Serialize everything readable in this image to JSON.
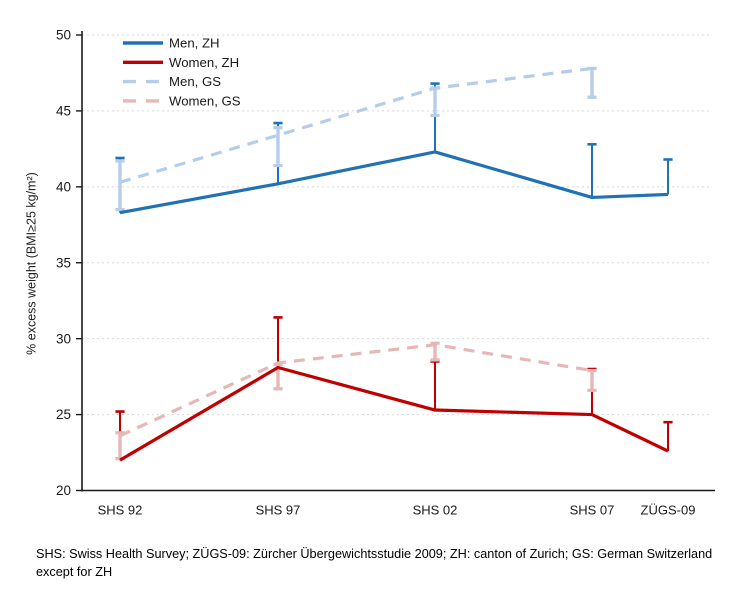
{
  "figure": {
    "caption": "SHS: Swiss Health Survey; ZÜGS-09: Zürcher Übergewichtsstudie 2009; ZH: canton of Zurich; GS: German Switzerland except for ZH"
  },
  "chart_data": {
    "type": "line",
    "title": "",
    "xlabel": "",
    "ylabel": "% excess weight (BMI≥25 kg/m²)",
    "categories": [
      "SHS 92",
      "SHS 97",
      "SHS 02",
      "SHS 07",
      "ZÜGS-09"
    ],
    "ylim": [
      20,
      50
    ],
    "ytick_step": 5,
    "yticks": [
      20,
      25,
      30,
      35,
      40,
      45,
      50
    ],
    "grid": "horizontal-dashed",
    "grid_color": "#D8D8D8",
    "axis_color": "#1a1a1a",
    "legend_position": "top-left-inside",
    "series": [
      {
        "name": "Men, ZH",
        "color": "#2171B5",
        "dash": false,
        "values": [
          38.3,
          40.2,
          42.3,
          39.3,
          39.5
        ],
        "error_bars": [
          {
            "lo": 38.3,
            "hi": 41.9,
            "caps": "top"
          },
          {
            "lo": 40.2,
            "hi": 44.2,
            "caps": "top"
          },
          {
            "lo": 42.3,
            "hi": 46.8,
            "caps": "top"
          },
          {
            "lo": 39.3,
            "hi": 42.8,
            "caps": "top"
          },
          {
            "lo": 39.5,
            "hi": 41.8,
            "caps": "top"
          }
        ]
      },
      {
        "name": "Women, ZH",
        "color": "#C00000",
        "dash": false,
        "values": [
          22.0,
          28.1,
          25.3,
          25.0,
          22.6
        ],
        "error_bars": [
          {
            "lo": 22.0,
            "hi": 25.2,
            "caps": "top"
          },
          {
            "lo": 28.1,
            "hi": 31.4,
            "caps": "top"
          },
          {
            "lo": 25.3,
            "hi": 28.5,
            "caps": "top"
          },
          {
            "lo": 25.0,
            "hi": 28.0,
            "caps": "top"
          },
          {
            "lo": 22.6,
            "hi": 24.5,
            "caps": "top"
          }
        ]
      },
      {
        "name": "Men, GS",
        "color": "#B5CDE9",
        "dash": true,
        "values": [
          40.3,
          43.4,
          46.5,
          47.8,
          null
        ],
        "error_bars": [
          {
            "lo": 38.5,
            "hi": 41.7,
            "caps": "both"
          },
          {
            "lo": 41.4,
            "hi": 43.9,
            "caps": "both"
          },
          {
            "lo": 44.7,
            "hi": 46.5,
            "caps": "both"
          },
          {
            "lo": 45.9,
            "hi": 47.8,
            "caps": "both"
          },
          null
        ]
      },
      {
        "name": "Women, GS",
        "color": "#E5B8B7",
        "dash": true,
        "values": [
          23.6,
          28.4,
          29.6,
          27.9,
          null
        ],
        "error_bars": [
          {
            "lo": 22.1,
            "hi": 23.8,
            "caps": "both"
          },
          {
            "lo": 26.7,
            "hi": 28.3,
            "caps": "both"
          },
          {
            "lo": 28.6,
            "hi": 29.7,
            "caps": "both"
          },
          {
            "lo": 26.6,
            "hi": 27.9,
            "caps": "both"
          },
          null
        ]
      }
    ]
  }
}
